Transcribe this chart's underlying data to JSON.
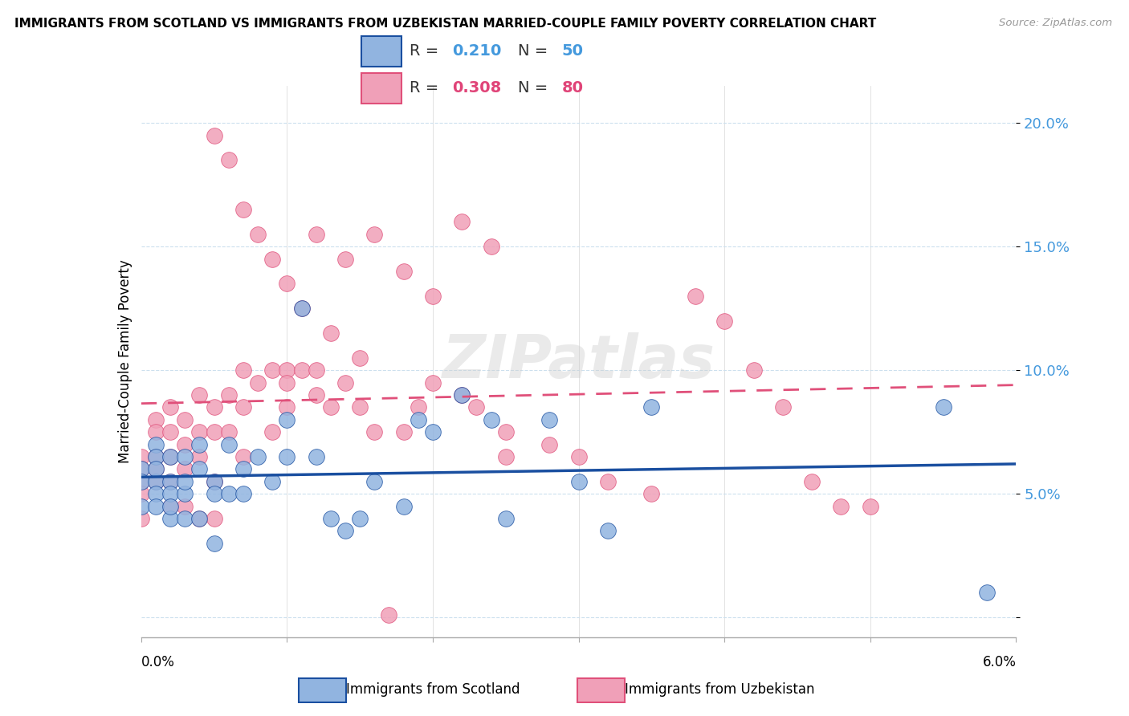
{
  "title": "IMMIGRANTS FROM SCOTLAND VS IMMIGRANTS FROM UZBEKISTAN MARRIED-COUPLE FAMILY POVERTY CORRELATION CHART",
  "source": "Source: ZipAtlas.com",
  "ylabel": "Married-Couple Family Poverty",
  "xlim": [
    0.0,
    0.06
  ],
  "ylim": [
    -0.008,
    0.215
  ],
  "yticks": [
    0.0,
    0.05,
    0.1,
    0.15,
    0.2
  ],
  "ytick_labels": [
    "",
    "5.0%",
    "10.0%",
    "15.0%",
    "20.0%"
  ],
  "legend_scotland_R": "0.210",
  "legend_scotland_N": "50",
  "legend_uzbekistan_R": "0.308",
  "legend_uzbekistan_N": "80",
  "scotland_color": "#91b4e0",
  "uzbekistan_color": "#f0a0b8",
  "scotland_line_color": "#1a4fa0",
  "uzbekistan_line_color": "#e0507a",
  "scotland_data_x": [
    0.0,
    0.0,
    0.0,
    0.001,
    0.001,
    0.001,
    0.001,
    0.001,
    0.002,
    0.002,
    0.002,
    0.002,
    0.003,
    0.003,
    0.003,
    0.004,
    0.004,
    0.005,
    0.005,
    0.005,
    0.006,
    0.007,
    0.008,
    0.009,
    0.01,
    0.011,
    0.012,
    0.013,
    0.014,
    0.015,
    0.016,
    0.018,
    0.019,
    0.02,
    0.022,
    0.024,
    0.025,
    0.028,
    0.03,
    0.032,
    0.035,
    0.001,
    0.002,
    0.003,
    0.004,
    0.006,
    0.007,
    0.01,
    0.055,
    0.058
  ],
  "scotland_data_y": [
    0.06,
    0.055,
    0.045,
    0.07,
    0.065,
    0.055,
    0.05,
    0.045,
    0.065,
    0.055,
    0.05,
    0.04,
    0.065,
    0.05,
    0.04,
    0.07,
    0.04,
    0.055,
    0.05,
    0.03,
    0.07,
    0.06,
    0.065,
    0.055,
    0.065,
    0.125,
    0.065,
    0.04,
    0.035,
    0.04,
    0.055,
    0.045,
    0.08,
    0.075,
    0.09,
    0.08,
    0.04,
    0.08,
    0.055,
    0.035,
    0.085,
    0.06,
    0.045,
    0.055,
    0.06,
    0.05,
    0.05,
    0.08,
    0.085,
    0.01
  ],
  "uzbekistan_data_x": [
    0.0,
    0.0,
    0.0,
    0.0,
    0.0,
    0.001,
    0.001,
    0.001,
    0.001,
    0.001,
    0.002,
    0.002,
    0.002,
    0.002,
    0.002,
    0.003,
    0.003,
    0.003,
    0.003,
    0.004,
    0.004,
    0.004,
    0.004,
    0.005,
    0.005,
    0.005,
    0.005,
    0.006,
    0.006,
    0.007,
    0.007,
    0.007,
    0.008,
    0.009,
    0.009,
    0.01,
    0.01,
    0.01,
    0.011,
    0.012,
    0.012,
    0.013,
    0.014,
    0.015,
    0.016,
    0.018,
    0.019,
    0.02,
    0.022,
    0.023,
    0.025,
    0.025,
    0.028,
    0.03,
    0.032,
    0.035,
    0.038,
    0.04,
    0.042,
    0.044,
    0.046,
    0.048,
    0.05,
    0.012,
    0.014,
    0.016,
    0.018,
    0.02,
    0.022,
    0.024,
    0.005,
    0.006,
    0.007,
    0.008,
    0.009,
    0.01,
    0.011,
    0.013,
    0.015,
    0.017
  ],
  "uzbekistan_data_y": [
    0.065,
    0.06,
    0.055,
    0.05,
    0.04,
    0.08,
    0.075,
    0.065,
    0.06,
    0.055,
    0.085,
    0.075,
    0.065,
    0.055,
    0.045,
    0.08,
    0.07,
    0.06,
    0.045,
    0.09,
    0.075,
    0.065,
    0.04,
    0.085,
    0.075,
    0.055,
    0.04,
    0.09,
    0.075,
    0.1,
    0.085,
    0.065,
    0.095,
    0.1,
    0.075,
    0.1,
    0.095,
    0.085,
    0.1,
    0.1,
    0.09,
    0.085,
    0.095,
    0.085,
    0.075,
    0.075,
    0.085,
    0.095,
    0.09,
    0.085,
    0.075,
    0.065,
    0.07,
    0.065,
    0.055,
    0.05,
    0.13,
    0.12,
    0.1,
    0.085,
    0.055,
    0.045,
    0.045,
    0.155,
    0.145,
    0.155,
    0.14,
    0.13,
    0.16,
    0.15,
    0.195,
    0.185,
    0.165,
    0.155,
    0.145,
    0.135,
    0.125,
    0.115,
    0.105,
    0.001
  ]
}
